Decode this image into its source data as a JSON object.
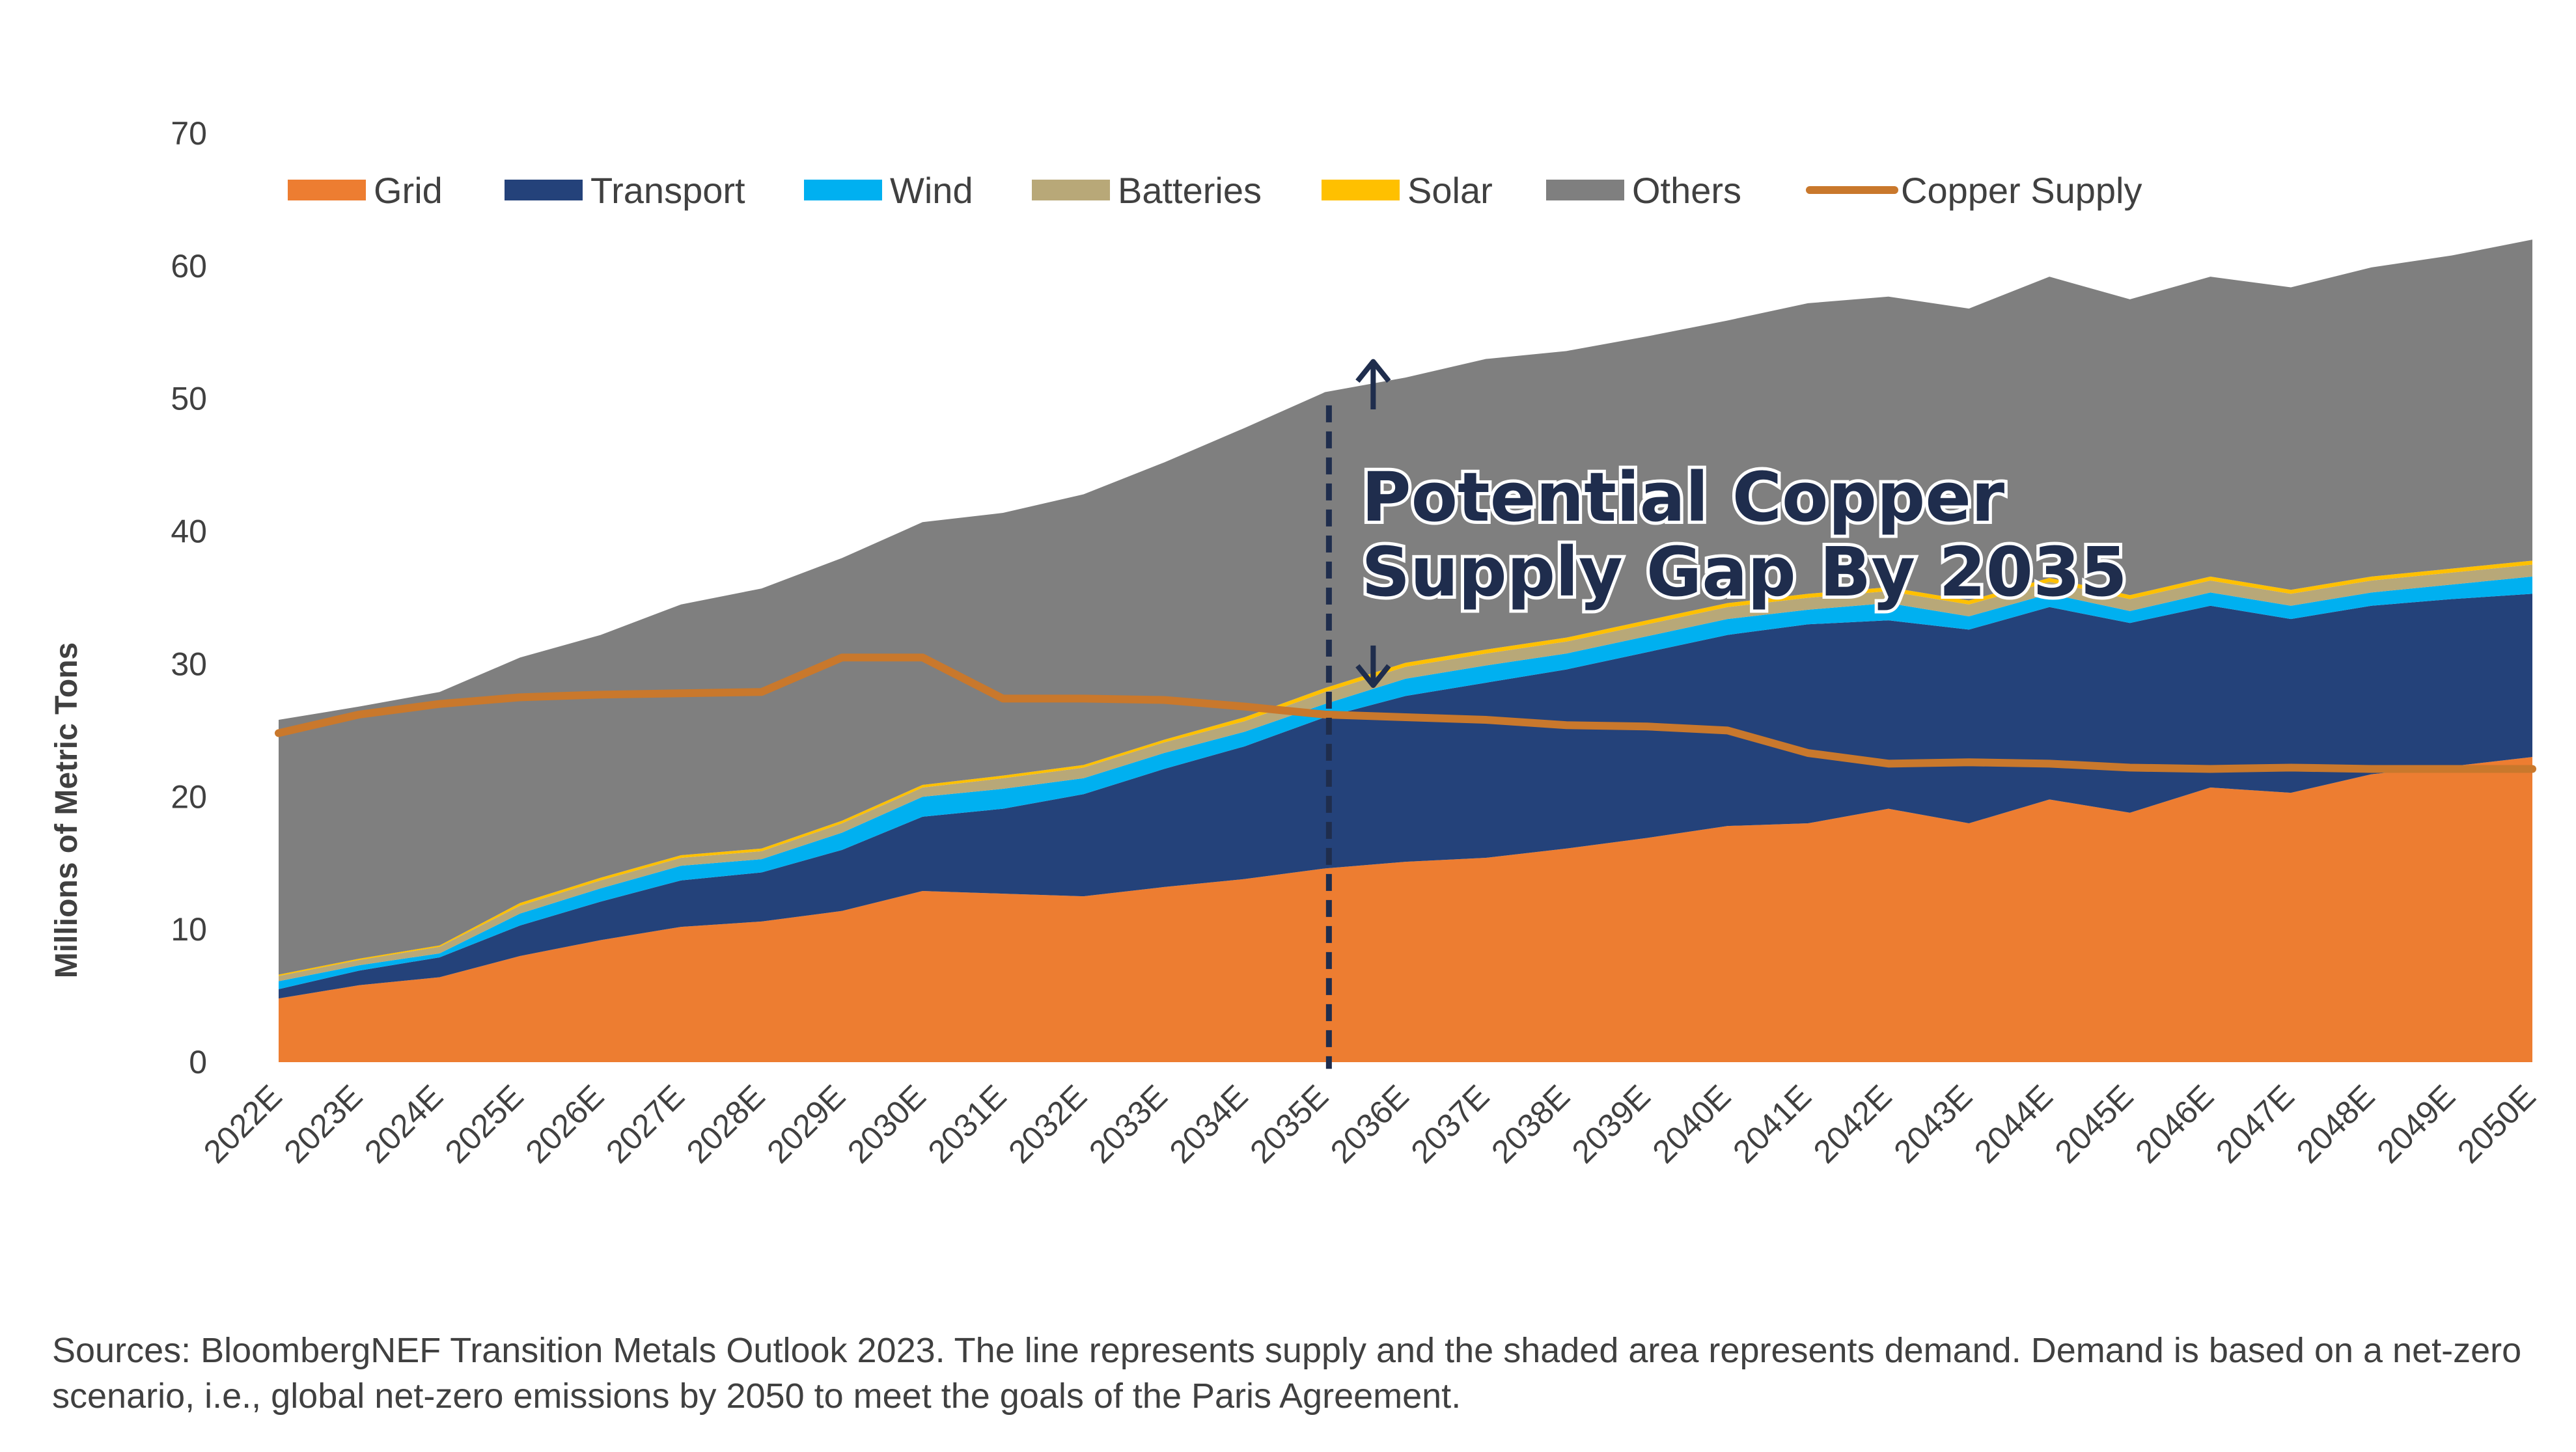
{
  "chart_data": {
    "type": "area",
    "ylabel": "Millions of Metric Tons",
    "ylim": [
      0,
      70
    ],
    "yticks": [
      0,
      10,
      20,
      30,
      40,
      50,
      60,
      70
    ],
    "grid": false,
    "legend_position": "top",
    "categories": [
      "2022E",
      "2023E",
      "2024E",
      "2025E",
      "2026E",
      "2027E",
      "2028E",
      "2029E",
      "2030E",
      "2031E",
      "2032E",
      "2033E",
      "2034E",
      "2035E",
      "2036E",
      "2037E",
      "2038E",
      "2039E",
      "2040E",
      "2041E",
      "2042E",
      "2043E",
      "2044E",
      "2045E",
      "2046E",
      "2047E",
      "2048E",
      "2049E",
      "2050E"
    ],
    "series": [
      {
        "name": "Grid",
        "type": "area",
        "color": "#ED7D31",
        "values": [
          4.8,
          5.8,
          6.4,
          8.0,
          9.2,
          10.2,
          10.6,
          11.4,
          12.9,
          12.7,
          12.5,
          13.2,
          13.8,
          14.6,
          15.1,
          15.4,
          16.1,
          16.9,
          17.8,
          18.0,
          19.1,
          18.0,
          19.8,
          18.8,
          20.7,
          20.3,
          21.7,
          22.3,
          23.0
        ]
      },
      {
        "name": "Transport",
        "type": "area",
        "color": "#24427A",
        "values": [
          0.7,
          1.1,
          1.5,
          2.3,
          2.9,
          3.5,
          3.7,
          4.6,
          5.6,
          6.4,
          7.7,
          8.9,
          10.0,
          11.4,
          12.5,
          13.2,
          13.5,
          14.0,
          14.4,
          15.0,
          14.2,
          14.6,
          14.5,
          14.3,
          13.7,
          13.1,
          12.7,
          12.6,
          12.3
        ]
      },
      {
        "name": "Wind",
        "type": "area",
        "color": "#00B0F0",
        "values": [
          0.6,
          0.4,
          0.3,
          0.9,
          1.0,
          1.1,
          1.0,
          1.3,
          1.5,
          1.5,
          1.2,
          1.2,
          1.1,
          1.0,
          1.3,
          1.3,
          1.2,
          1.2,
          1.2,
          1.1,
          1.3,
          1.0,
          1.0,
          0.9,
          1.0,
          1.0,
          1.0,
          1.1,
          1.3
        ]
      },
      {
        "name": "Batteries",
        "type": "area",
        "color": "#B8A878",
        "values": [
          0.4,
          0.4,
          0.5,
          0.6,
          0.6,
          0.6,
          0.6,
          0.7,
          0.7,
          0.8,
          0.8,
          0.8,
          0.8,
          0.9,
          0.9,
          0.9,
          0.9,
          0.9,
          0.9,
          0.9,
          0.9,
          0.9,
          0.9,
          0.9,
          0.9,
          0.9,
          0.9,
          0.9,
          0.9
        ]
      },
      {
        "name": "Solar",
        "type": "area",
        "color": "#FFC000",
        "values": [
          0.1,
          0.1,
          0.1,
          0.2,
          0.2,
          0.2,
          0.2,
          0.2,
          0.2,
          0.2,
          0.2,
          0.2,
          0.3,
          0.3,
          0.3,
          0.3,
          0.3,
          0.3,
          0.3,
          0.3,
          0.3,
          0.3,
          0.3,
          0.3,
          0.3,
          0.3,
          0.3,
          0.3,
          0.3
        ]
      },
      {
        "name": "Others",
        "type": "area",
        "color": "#7F7F7F",
        "values": [
          19.2,
          19.0,
          19.1,
          18.5,
          18.3,
          18.9,
          19.6,
          19.8,
          19.8,
          19.8,
          20.4,
          20.9,
          21.8,
          22.3,
          21.5,
          21.9,
          21.6,
          21.4,
          21.3,
          21.9,
          21.9,
          22.0,
          22.7,
          22.3,
          22.6,
          22.8,
          23.3,
          23.6,
          24.2
        ]
      },
      {
        "name": "Copper Supply",
        "type": "line",
        "color": "#C9782C",
        "values": [
          24.8,
          26.2,
          27.0,
          27.5,
          27.7,
          27.8,
          27.9,
          30.5,
          30.5,
          27.4,
          27.4,
          27.3,
          26.8,
          26.2,
          26.0,
          25.8,
          25.4,
          25.3,
          25.0,
          23.3,
          22.5,
          22.6,
          22.5,
          22.2,
          22.1,
          22.2,
          22.1,
          22.1,
          22.1
        ]
      }
    ],
    "annotation": {
      "lines": [
        "Potential Copper",
        "Supply Gap By 2035"
      ],
      "category": "2035E"
    },
    "source": "Sources: BloombergNEF Transition Metals Outlook 2023. The line represents supply and the shaded area represents demand. Demand is based on a net-zero scenario, i.e., global net-zero emissions by 2050 to meet the goals of the Paris Agreement."
  }
}
